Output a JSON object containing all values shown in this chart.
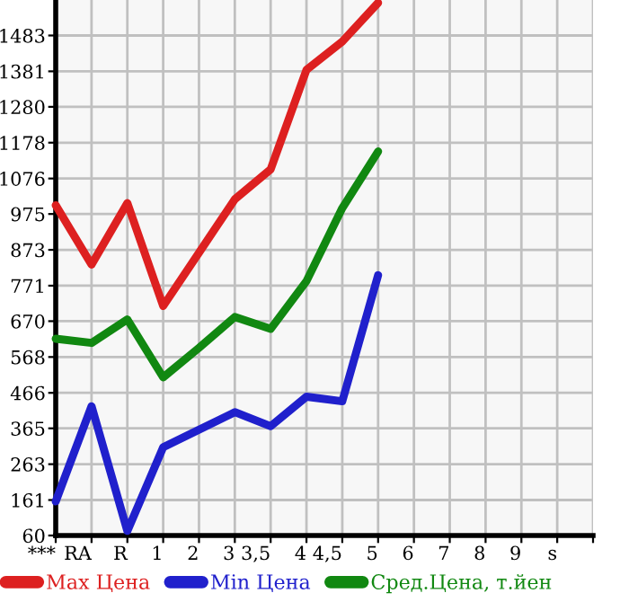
{
  "chart_data": {
    "type": "line",
    "categories": [
      "***",
      "RA",
      "R",
      "1",
      "2",
      "3",
      "3,5",
      "4",
      "4,5",
      "5",
      "6",
      "7",
      "8",
      "9",
      "s",
      null
    ],
    "series": [
      {
        "name": "Max Цена",
        "color": "#dd2020",
        "values": [
          1000,
          831,
          1006,
          713,
          865,
          1017,
          1102,
          1385,
          1466,
          1576,
          null,
          null,
          null,
          null,
          null,
          null
        ]
      },
      {
        "name": "Min Цена",
        "color": "#2020cc",
        "values": [
          157,
          428,
          73,
          311,
          361,
          411,
          371,
          455,
          442,
          801,
          null,
          null,
          null,
          null,
          null,
          null
        ]
      },
      {
        "name": "Сред.Цена, т.йен",
        "color": "#118811",
        "values": [
          620,
          608,
          675,
          510,
          594,
          682,
          648,
          784,
          992,
          1153,
          null,
          null,
          null,
          null,
          null,
          null
        ]
      }
    ],
    "ylim": [
      60,
      1584
    ],
    "yticks": [
      60,
      161,
      263,
      365,
      466,
      568,
      670,
      771,
      873,
      975,
      1076,
      1178,
      1280,
      1381,
      1483
    ],
    "grid": true,
    "legend": "bottom",
    "marker": "none",
    "line_style": "solid"
  }
}
